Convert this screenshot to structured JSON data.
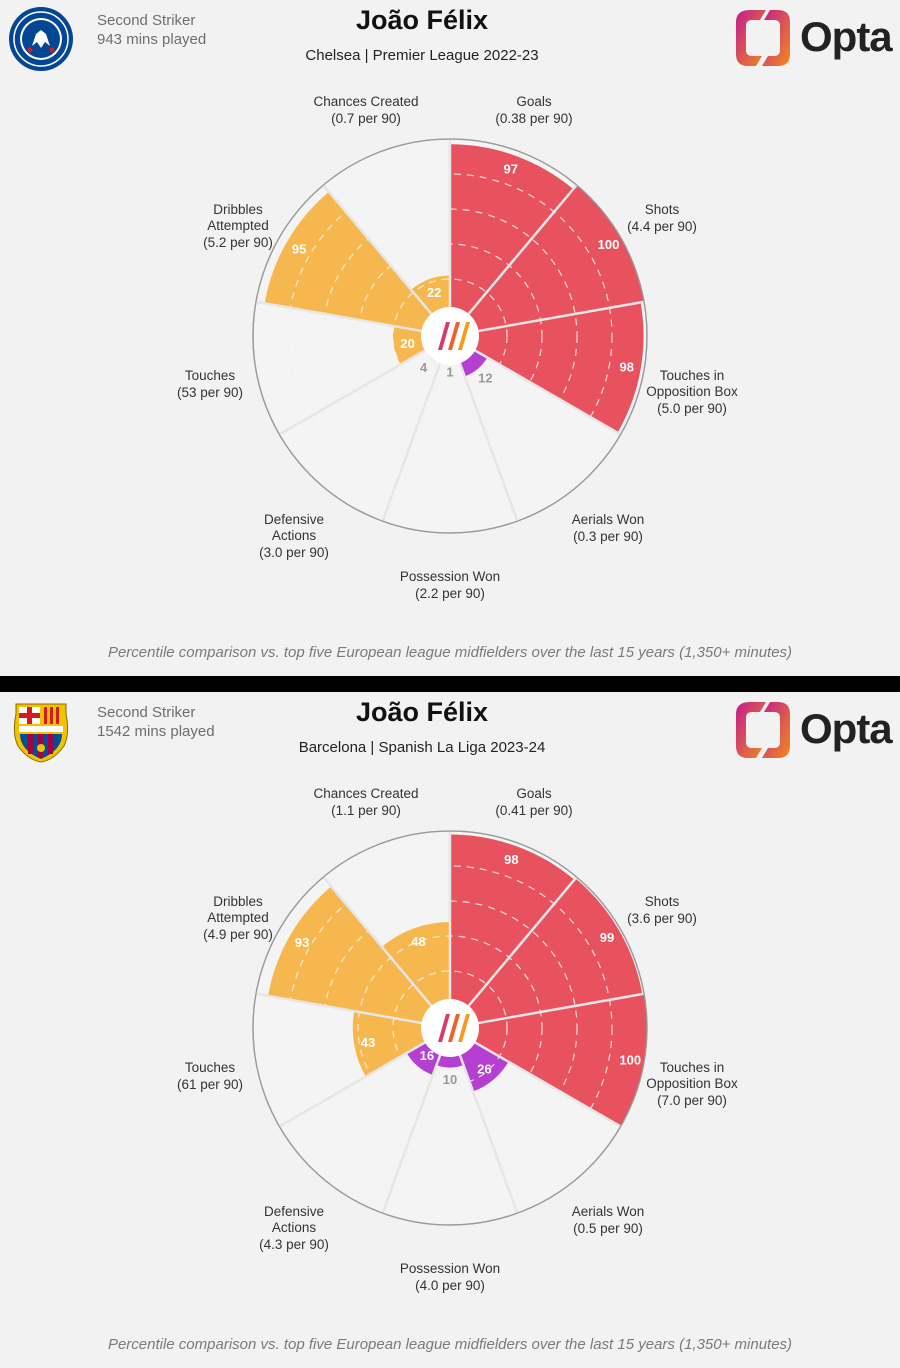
{
  "panels": [
    {
      "club": "Chelsea",
      "position": "Second Striker",
      "minutes": "943 mins played",
      "player": "João Félix",
      "subtitle": "Chelsea | Premier League 2022-23",
      "brand": "Opta",
      "caption": "Percentile comparison vs. top five European league midfielders over the last 15 years (1,350+ minutes)"
    },
    {
      "club": "Barcelona",
      "position": "Second Striker",
      "minutes": "1542 mins played",
      "player": "João Félix",
      "subtitle": "Barcelona | Spanish La Liga 2023-24",
      "brand": "Opta",
      "caption": "Percentile comparison vs. top five European league midfielders over the last 15 years (1,350+ minutes)"
    }
  ],
  "colors": {
    "attack": "#e8525f",
    "possession": "#f6b84e",
    "defence": "#b53fd1",
    "background": "#f2f2f2",
    "chelsea_blue": "#034694",
    "barca_blue": "#004d98",
    "barca_red": "#a50044"
  },
  "chart_data": [
    {
      "type": "radar",
      "metric": "percentile",
      "range": [
        0,
        100
      ],
      "categories": [
        {
          "label": "Goals",
          "rate": "(0.38 per 90)",
          "percentile": 97,
          "group": "attack"
        },
        {
          "label": "Shots",
          "rate": "(4.4 per 90)",
          "percentile": 100,
          "group": "attack"
        },
        {
          "label": "Touches in Opposition Box",
          "rate": "(5.0 per 90)",
          "percentile": 98,
          "group": "attack"
        },
        {
          "label": "Aerials Won",
          "rate": "(0.3 per 90)",
          "percentile": 12,
          "group": "defence"
        },
        {
          "label": "Possession Won",
          "rate": "(2.2 per 90)",
          "percentile": 1,
          "group": "defence"
        },
        {
          "label": "Defensive Actions",
          "rate": "(3.0 per 90)",
          "percentile": 4,
          "group": "defence"
        },
        {
          "label": "Touches",
          "rate": "(53 per 90)",
          "percentile": 20,
          "group": "possession"
        },
        {
          "label": "Dribbles Attempted",
          "rate": "(5.2 per 90)",
          "percentile": 95,
          "group": "possession"
        },
        {
          "label": "Chances Created",
          "rate": "(0.7 per 90)",
          "percentile": 22,
          "group": "possession"
        }
      ]
    },
    {
      "type": "radar",
      "metric": "percentile",
      "range": [
        0,
        100
      ],
      "categories": [
        {
          "label": "Goals",
          "rate": "(0.41 per 90)",
          "percentile": 98,
          "group": "attack"
        },
        {
          "label": "Shots",
          "rate": "(3.6 per 90)",
          "percentile": 99,
          "group": "attack"
        },
        {
          "label": "Touches in Opposition Box",
          "rate": "(7.0 per 90)",
          "percentile": 100,
          "group": "attack"
        },
        {
          "label": "Aerials Won",
          "rate": "(0.5 per 90)",
          "percentile": 26,
          "group": "defence"
        },
        {
          "label": "Possession Won",
          "rate": "(4.0 per 90)",
          "percentile": 10,
          "group": "defence"
        },
        {
          "label": "Defensive Actions",
          "rate": "(4.3 per 90)",
          "percentile": 16,
          "group": "defence"
        },
        {
          "label": "Touches",
          "rate": "(61 per 90)",
          "percentile": 43,
          "group": "possession"
        },
        {
          "label": "Dribbles Attempted",
          "rate": "(4.9 per 90)",
          "percentile": 93,
          "group": "possession"
        },
        {
          "label": "Chances Created",
          "rate": "(1.1 per 90)",
          "percentile": 48,
          "group": "possession"
        }
      ]
    }
  ]
}
